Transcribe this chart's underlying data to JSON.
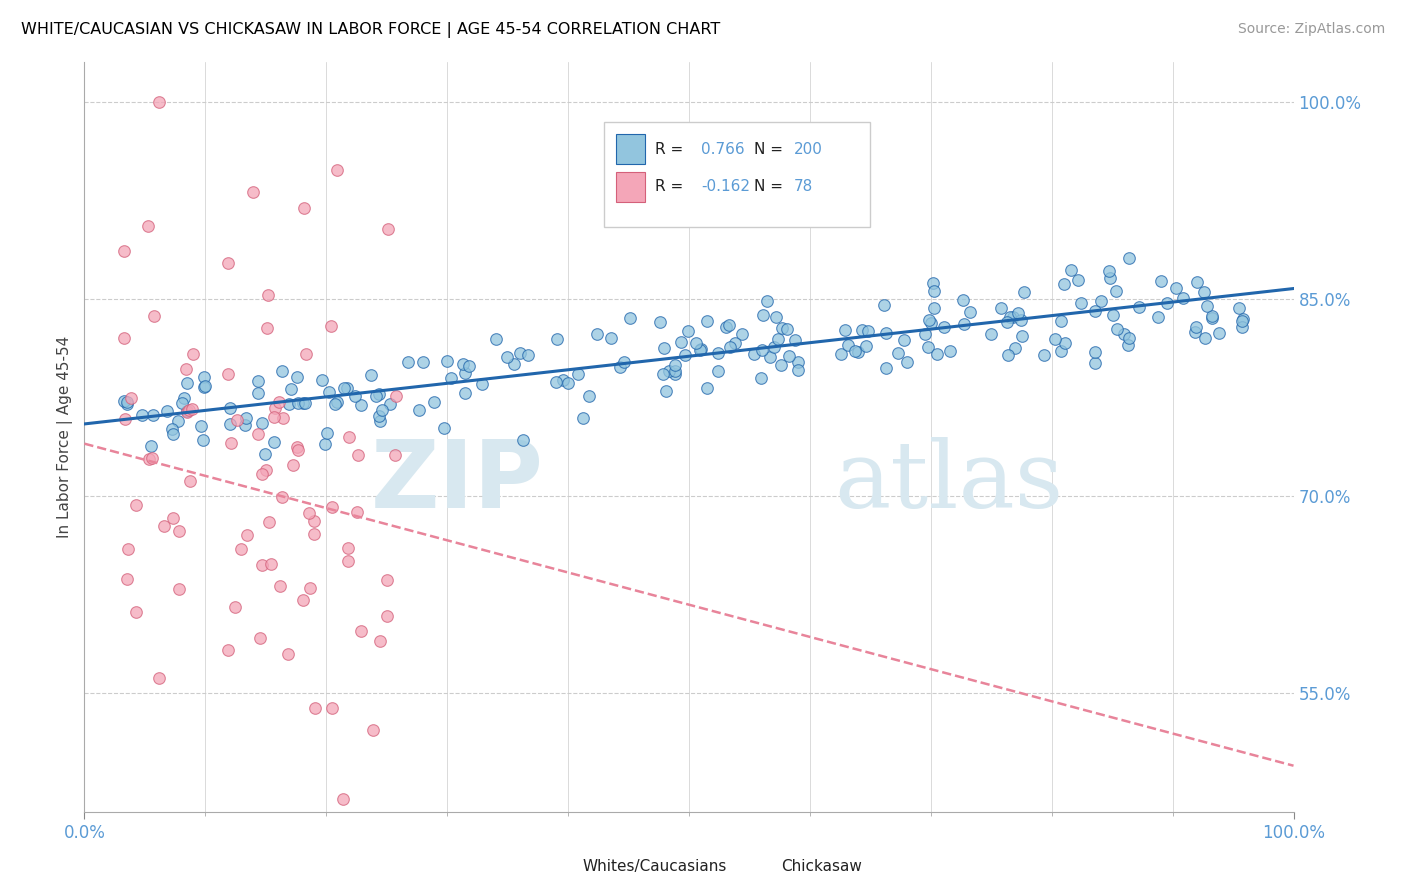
{
  "title": "WHITE/CAUCASIAN VS CHICKASAW IN LABOR FORCE | AGE 45-54 CORRELATION CHART",
  "source_text": "Source: ZipAtlas.com",
  "ylabel": "In Labor Force | Age 45-54",
  "xlim": [
    0.0,
    1.0
  ],
  "ylim": [
    0.46,
    1.03
  ],
  "y_ticks": [
    0.55,
    0.7,
    0.85,
    1.0
  ],
  "y_tick_labels": [
    "55.0%",
    "70.0%",
    "85.0%",
    "100.0%"
  ],
  "blue_R": 0.766,
  "blue_N": 200,
  "pink_R": -0.162,
  "pink_N": 78,
  "blue_color": "#92C5DE",
  "pink_color": "#F4A6B8",
  "blue_line_color": "#2166AC",
  "pink_line_color": "#E8849A",
  "grid_color": "#cccccc",
  "watermark_color": "#D8E8F0",
  "blue_line_y0": 0.755,
  "blue_line_y1": 0.858,
  "pink_line_y0": 0.74,
  "pink_line_y1": 0.495,
  "legend_R1": "0.766",
  "legend_N1": "200",
  "legend_R2": "-0.162",
  "legend_N2": "78"
}
